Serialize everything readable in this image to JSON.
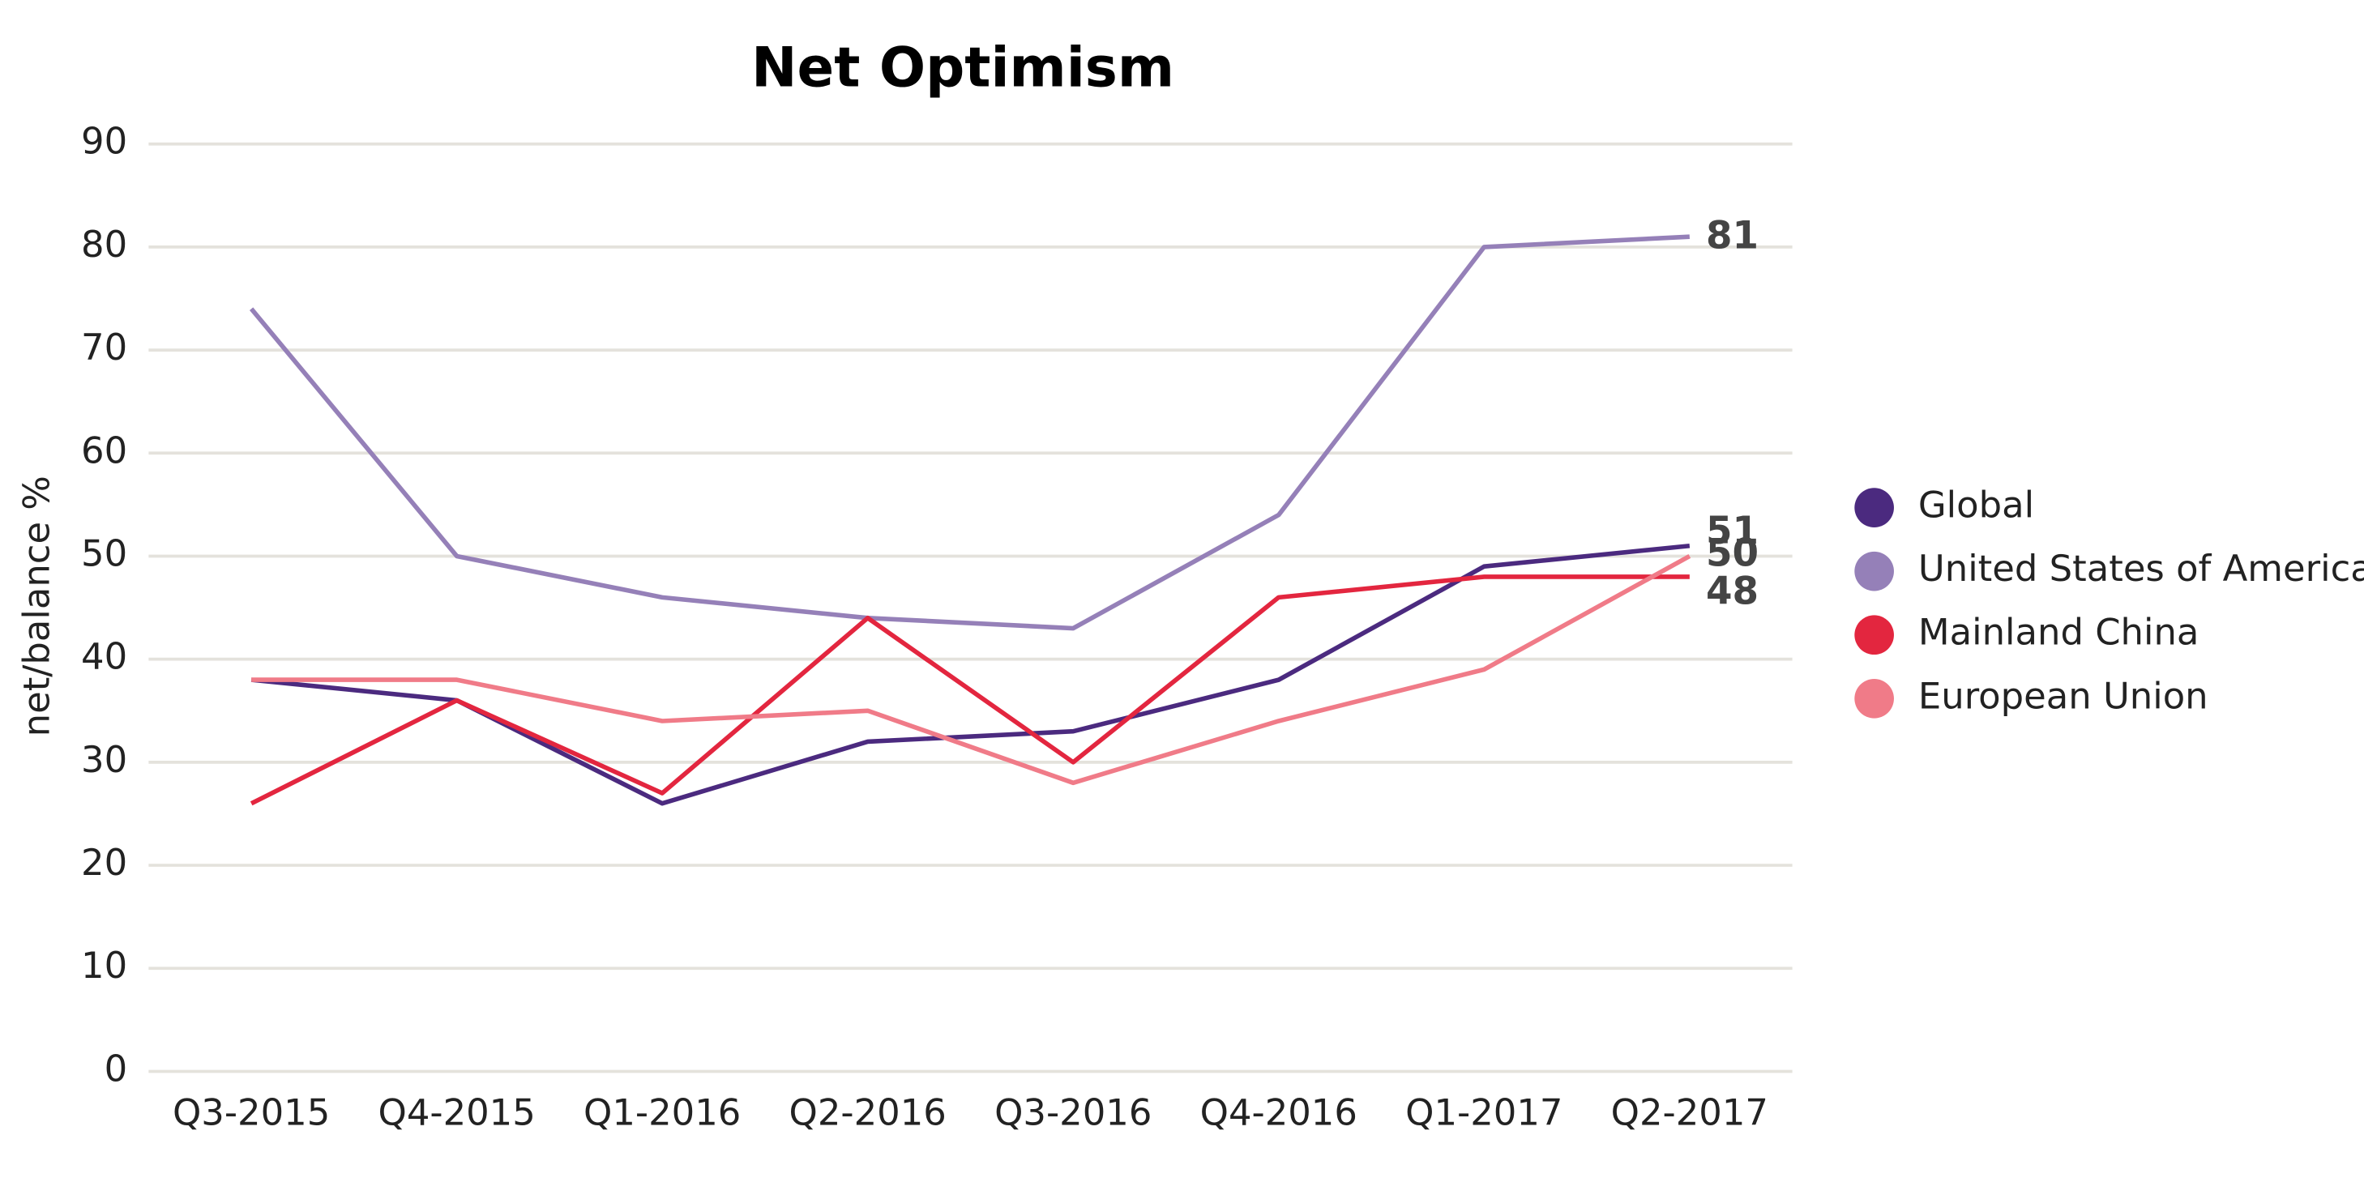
{
  "chart_data": {
    "type": "line",
    "title": "Net Optimism",
    "y_label": "net/balance %",
    "categories": [
      "Q3-2015",
      "Q4-2015",
      "Q1-2016",
      "Q2-2016",
      "Q3-2016",
      "Q4-2016",
      "Q1-2017",
      "Q2-2017"
    ],
    "series": [
      {
        "name": "Global",
        "color": "#4b2a7f",
        "values": [
          38,
          36,
          26,
          32,
          33,
          38,
          49,
          51
        ]
      },
      {
        "name": "United States of America",
        "color": "#9580b8",
        "values": [
          74,
          50,
          46,
          44,
          43,
          54,
          80,
          81
        ]
      },
      {
        "name": "Mainland China",
        "color": "#e3263f",
        "values": [
          26,
          36,
          27,
          44,
          30,
          46,
          48,
          48
        ]
      },
      {
        "name": "European Union",
        "color": "#f07b88",
        "values": [
          38,
          38,
          34,
          35,
          28,
          34,
          39,
          50
        ]
      }
    ],
    "ylim": [
      0,
      90
    ],
    "yticks": [
      0,
      10,
      20,
      30,
      40,
      50,
      60,
      70,
      80,
      90
    ],
    "grid": true,
    "legend": "right",
    "end_labels": true
  }
}
